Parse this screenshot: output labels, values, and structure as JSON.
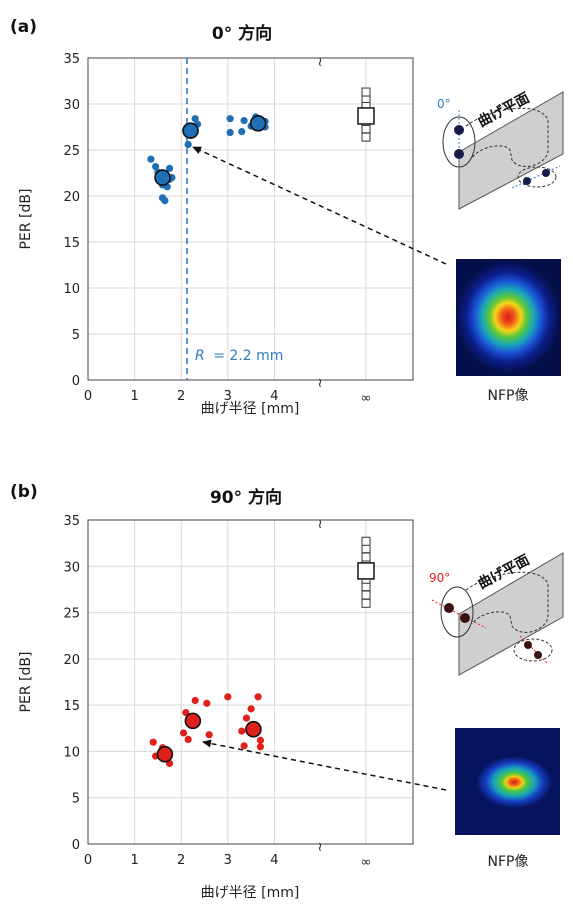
{
  "colors": {
    "panel_a": "#1f6fb4",
    "panel_b": "#e0201b",
    "reference_line": "#2f7dc4",
    "grid": "#d9d9d9",
    "plane_fill": "#cfcfcf"
  },
  "chart_data": [
    {
      "panel_label": "(a)",
      "type": "scatter",
      "title": "0° 方向",
      "xlabel": "曲げ半径 [mm]",
      "ylabel": "PER [dB]",
      "xlim": [
        0,
        4.5
      ],
      "ylim": [
        0,
        35
      ],
      "x_ticks": [
        "0",
        "1",
        "2",
        "3",
        "4"
      ],
      "y_ticks": [
        "0",
        "5",
        "10",
        "15",
        "20",
        "25",
        "30",
        "35"
      ],
      "infinity_label": "∞",
      "axis_break_symbol": "≀",
      "grid": true,
      "reference_line": {
        "x": 2.2,
        "label_symbol": "R",
        "label_value": "= 2.2 mm"
      },
      "points": [
        {
          "x": 1.35,
          "y": 24.0
        },
        {
          "x": 1.45,
          "y": 23.2
        },
        {
          "x": 1.5,
          "y": 22.6
        },
        {
          "x": 1.55,
          "y": 22.2
        },
        {
          "x": 1.6,
          "y": 21.2
        },
        {
          "x": 1.6,
          "y": 19.8
        },
        {
          "x": 1.65,
          "y": 19.5
        },
        {
          "x": 1.7,
          "y": 21.0
        },
        {
          "x": 1.75,
          "y": 23.0
        },
        {
          "x": 1.8,
          "y": 22.0
        },
        {
          "x": 1.75,
          "y": 21.8
        },
        {
          "x": 2.15,
          "y": 25.6
        },
        {
          "x": 2.25,
          "y": 27.0
        },
        {
          "x": 2.3,
          "y": 28.4
        },
        {
          "x": 2.35,
          "y": 27.8
        },
        {
          "x": 3.05,
          "y": 28.4
        },
        {
          "x": 3.05,
          "y": 26.9
        },
        {
          "x": 3.3,
          "y": 27.0
        },
        {
          "x": 3.35,
          "y": 28.2
        },
        {
          "x": 3.5,
          "y": 27.6
        },
        {
          "x": 3.6,
          "y": 28.6
        },
        {
          "x": 3.7,
          "y": 27.8
        },
        {
          "x": 3.8,
          "y": 27.5
        },
        {
          "x": 3.8,
          "y": 28.1
        }
      ],
      "means": [
        {
          "x": 1.6,
          "y": 22.0
        },
        {
          "x": 2.2,
          "y": 27.1
        },
        {
          "x": 3.65,
          "y": 27.9
        }
      ],
      "infinity_points": [
        {
          "y": 26.4
        },
        {
          "y": 27.3
        },
        {
          "y": 28.1
        },
        {
          "y": 29.0
        },
        {
          "y": 29.8
        },
        {
          "y": 30.6
        },
        {
          "y": 31.3
        }
      ],
      "infinity_mean": {
        "y": 28.7
      },
      "inset": {
        "plane_title": "曲げ平面",
        "angle_label": "0°",
        "image_caption": "NFP像"
      }
    },
    {
      "panel_label": "(b)",
      "type": "scatter",
      "title": "90° 方向",
      "xlabel": "曲げ半径 [mm]",
      "ylabel": "PER [dB]",
      "xlim": [
        0,
        4.5
      ],
      "ylim": [
        0,
        35
      ],
      "x_ticks": [
        "0",
        "1",
        "2",
        "3",
        "4"
      ],
      "y_ticks": [
        "0",
        "5",
        "10",
        "15",
        "20",
        "25",
        "30",
        "35"
      ],
      "infinity_label": "∞",
      "axis_break_symbol": "≀",
      "grid": true,
      "points": [
        {
          "x": 1.4,
          "y": 11.0
        },
        {
          "x": 1.45,
          "y": 9.5
        },
        {
          "x": 1.6,
          "y": 10.4
        },
        {
          "x": 1.7,
          "y": 10.0
        },
        {
          "x": 1.75,
          "y": 8.7
        },
        {
          "x": 2.05,
          "y": 12.0
        },
        {
          "x": 2.15,
          "y": 11.3
        },
        {
          "x": 2.1,
          "y": 14.2
        },
        {
          "x": 2.3,
          "y": 15.5
        },
        {
          "x": 2.55,
          "y": 15.2
        },
        {
          "x": 2.6,
          "y": 11.8
        },
        {
          "x": 3.0,
          "y": 15.9
        },
        {
          "x": 3.3,
          "y": 12.2
        },
        {
          "x": 3.35,
          "y": 10.6
        },
        {
          "x": 3.4,
          "y": 13.6
        },
        {
          "x": 3.5,
          "y": 14.6
        },
        {
          "x": 3.65,
          "y": 15.9
        },
        {
          "x": 3.7,
          "y": 11.2
        },
        {
          "x": 3.7,
          "y": 10.5
        }
      ],
      "means": [
        {
          "x": 1.65,
          "y": 9.7
        },
        {
          "x": 2.25,
          "y": 13.3
        },
        {
          "x": 3.55,
          "y": 12.4
        }
      ],
      "infinity_points": [
        {
          "y": 26.0
        },
        {
          "y": 26.9
        },
        {
          "y": 27.8
        },
        {
          "y": 28.6
        },
        {
          "y": 30.2
        },
        {
          "y": 31.0
        },
        {
          "y": 31.9
        },
        {
          "y": 32.7
        }
      ],
      "infinity_mean": {
        "y": 29.5
      },
      "inset": {
        "plane_title": "曲げ平面",
        "angle_label": "90°",
        "image_caption": "NFP像"
      }
    }
  ]
}
